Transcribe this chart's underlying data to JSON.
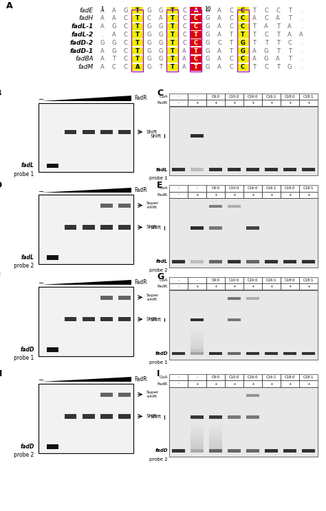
{
  "panel_A": {
    "label": "A",
    "sequences": [
      {
        "name": "fadE",
        "italic": true,
        "bold": false,
        "seq": "AAGTGGTCAGACCTCCT."
      },
      {
        "name": "fadH",
        "italic": true,
        "bold": false,
        "seq": "AACTCATCCGACCACAT."
      },
      {
        "name": "fadL-1",
        "italic": true,
        "bold": true,
        "seq": "AGCTGGTCCGACCTATA."
      },
      {
        "name": "fadL-2",
        "italic": true,
        "bold": true,
        "seq": ".ACTGGTCTGATTTCTAA"
      },
      {
        "name": "fadD-2",
        "italic": true,
        "bold": true,
        "seq": "GGCTGGTCCGCTGTTTC."
      },
      {
        "name": "fadD-1",
        "italic": true,
        "bold": true,
        "seq": "AGCTGGTATGATGAGTT."
      },
      {
        "name": "fadBA",
        "italic": true,
        "bold": false,
        "seq": "ATCTGGTACGACCAGAT."
      },
      {
        "name": "fadM",
        "italic": true,
        "bold": false,
        "seq": "ACCAGTTATGACCTCTG."
      }
    ],
    "yellow_cols": [
      3,
      6,
      12
    ],
    "red_cols": [
      8
    ],
    "purple_cols": [
      3,
      6,
      8,
      12
    ]
  },
  "left_panels": [
    {
      "label": "B",
      "probe1": "fadL",
      "probe2": "probe 1",
      "has_super": false
    },
    {
      "label": "D",
      "probe1": "fadL",
      "probe2": "probe 2",
      "has_super": true
    },
    {
      "label": "F",
      "probe1": "fadD",
      "probe2": "probe 1",
      "has_super": true
    },
    {
      "label": "H",
      "probe1": "fadD",
      "probe2": "probe 2",
      "has_super": true
    }
  ],
  "right_panels": [
    {
      "label": "C",
      "probe1": "fadL",
      "probe2": "probe 1",
      "coa_row": [
        "-",
        "-",
        "C9:0",
        "C10:0",
        "C16:0",
        "C16:1",
        "C18:0",
        "C18:1"
      ],
      "fadr_row": [
        "-",
        "+",
        "+",
        "+",
        "+",
        "+",
        "+",
        "+"
      ],
      "shift_only": true,
      "super_shift": false
    },
    {
      "label": "E",
      "probe1": "fadL",
      "probe2": "probe 2",
      "coa_row": [
        "-",
        "-",
        "C9:0",
        "C10:0",
        "C16:0",
        "C16:1",
        "C18:0",
        "C18:1"
      ],
      "fadr_row": [
        "-",
        "+",
        "+",
        "+",
        "+",
        "+",
        "+",
        "+"
      ],
      "shift_only": false,
      "super_shift": false
    },
    {
      "label": "G",
      "probe1": "fadD",
      "probe2": "probe 1",
      "coa_row": [
        "-",
        "-",
        "C9:0",
        "C10:0",
        "C16:0",
        "C16:1",
        "C18:0",
        "C18:1"
      ],
      "fadr_row": [
        "-",
        "+",
        "+",
        "+",
        "+",
        "+",
        "+",
        "+"
      ],
      "shift_only": false,
      "super_shift": false
    },
    {
      "label": "I",
      "probe1": "fadD",
      "probe2": "probe 2",
      "coa_row": [
        "-",
        "-",
        "C9:0",
        "C10:0",
        "C16:0",
        "C16:1",
        "C18:0",
        "C18:1"
      ],
      "fadr_row": [
        "-",
        "+",
        "+",
        "+",
        "+",
        "+",
        "+",
        "+"
      ],
      "shift_only": false,
      "super_shift": false
    }
  ]
}
